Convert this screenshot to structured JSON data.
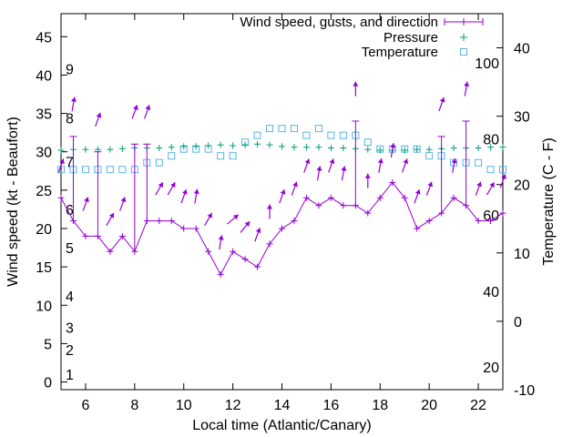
{
  "chart_data": {
    "type": "line",
    "title": "",
    "xlabel": "Local time (Atlantic/Canary)",
    "ylabel": "Wind speed (kt - Beaufort)",
    "y2label": "Temperature (C - F)",
    "xlim": [
      5,
      23
    ],
    "ylim": [
      -1,
      48
    ],
    "y2lim": [
      -10,
      45
    ],
    "x_ticks": [
      6,
      8,
      10,
      12,
      14,
      16,
      18,
      20,
      22
    ],
    "y_ticks": [
      0,
      5,
      10,
      15,
      20,
      25,
      30,
      35,
      40,
      45
    ],
    "y2_ticks": [
      -10,
      0,
      10,
      20,
      30,
      40
    ],
    "beaufort_labels": [
      {
        "text": "1",
        "y": 1
      },
      {
        "text": "2",
        "y": 4.2
      },
      {
        "text": "3",
        "y": 7.1
      },
      {
        "text": "4",
        "y": 11.2
      },
      {
        "text": "5",
        "y": 17.5
      },
      {
        "text": "6",
        "y": 22.5
      },
      {
        "text": "7",
        "y": 28.7
      },
      {
        "text": "8",
        "y": 34.4
      },
      {
        "text": "9",
        "y": 40.8
      }
    ],
    "fahrenheit_labels": [
      {
        "text": "20",
        "t": -6.7
      },
      {
        "text": "40",
        "t": 4.4
      },
      {
        "text": "60",
        "t": 15.6
      },
      {
        "text": "80",
        "t": 26.7
      },
      {
        "text": "100",
        "t": 37.8
      }
    ],
    "legend": {
      "placement": "top-right",
      "entries": [
        {
          "label": "Wind speed, gusts, and direction",
          "color": "#9400d3"
        },
        {
          "label": "Pressure",
          "color": "#009e73"
        },
        {
          "label": "Temperature",
          "color": "#56b4e9"
        }
      ]
    },
    "series": [
      {
        "name": "Wind speed, gusts, and direction",
        "color": "#9400d3",
        "x": [
          5,
          5.5,
          6,
          6.5,
          7,
          7.5,
          8,
          8.5,
          9,
          9.5,
          10,
          10.5,
          11,
          11.5,
          12,
          12.5,
          13,
          13.5,
          14,
          14.5,
          15,
          15.5,
          16,
          16.5,
          17,
          17.5,
          18,
          18.5,
          19,
          19.5,
          20,
          20.5,
          21,
          21.5,
          22,
          22.5,
          23
        ],
        "wind": [
          24,
          21,
          19,
          19,
          17,
          19,
          17,
          21,
          21,
          21,
          20,
          20,
          17,
          14,
          17,
          16,
          15,
          18,
          20,
          21,
          24,
          23,
          24,
          23,
          23,
          22,
          24,
          26,
          24,
          20,
          21,
          22,
          24,
          23,
          21,
          21,
          22
        ],
        "gust": [
          null,
          32,
          null,
          30,
          null,
          null,
          31,
          31,
          null,
          null,
          null,
          null,
          null,
          null,
          null,
          null,
          null,
          null,
          null,
          null,
          null,
          null,
          null,
          null,
          34,
          null,
          null,
          null,
          null,
          null,
          null,
          32,
          null,
          34,
          null,
          null,
          null
        ],
        "direction_deg": [
          200,
          190,
          200,
          200,
          210,
          200,
          200,
          200,
          210,
          210,
          200,
          190,
          210,
          190,
          230,
          220,
          200,
          180,
          200,
          200,
          200,
          190,
          200,
          190,
          180,
          180,
          190,
          190,
          200,
          200,
          200,
          200,
          190,
          190,
          200,
          210,
          200
        ]
      },
      {
        "name": "Pressure",
        "color": "#009e73",
        "x": [
          5,
          5.5,
          6,
          6.5,
          7,
          7.5,
          8,
          8.5,
          9,
          9.5,
          10,
          10.5,
          11,
          11.5,
          12,
          12.5,
          13,
          13.5,
          14,
          14.5,
          15,
          15.5,
          16,
          16.5,
          17,
          17.5,
          18,
          18.5,
          19,
          19.5,
          20,
          20.5,
          21,
          21.5,
          22,
          22.5,
          23
        ],
        "values": [
          30.2,
          30.3,
          30.3,
          30.3,
          30.3,
          30.4,
          30.5,
          30.5,
          30.5,
          30.6,
          30.7,
          30.7,
          30.8,
          30.9,
          30.8,
          30.9,
          31.0,
          30.9,
          30.7,
          30.6,
          30.6,
          30.6,
          30.5,
          30.5,
          30.4,
          30.3,
          30.2,
          30.2,
          30.2,
          30.3,
          30.3,
          30.4,
          30.5,
          30.5,
          30.5,
          30.6,
          30.6
        ]
      },
      {
        "name": "Temperature",
        "color": "#56b4e9",
        "x": [
          5,
          5.5,
          6,
          6.5,
          7,
          7.5,
          8,
          8.5,
          9,
          9.5,
          10,
          10.5,
          11,
          11.5,
          12,
          12.5,
          13,
          13.5,
          14,
          14.5,
          15,
          15.5,
          16,
          16.5,
          17,
          17.5,
          18,
          18.5,
          19,
          19.5,
          20,
          20.5,
          21,
          21.5,
          22,
          22.5,
          23
        ],
        "values": [
          22.2,
          22.2,
          22.2,
          22.2,
          22.2,
          22.2,
          22.2,
          23.2,
          23.2,
          24.2,
          25.2,
          25.2,
          25.2,
          24.2,
          24.2,
          26.2,
          27.2,
          28.2,
          28.2,
          28.2,
          27.2,
          28.2,
          27.2,
          27.2,
          27.2,
          26.2,
          25.2,
          25.2,
          25.2,
          25.2,
          24.2,
          24.2,
          23.2,
          23.2,
          23.2,
          22.2,
          22.2
        ]
      }
    ]
  }
}
